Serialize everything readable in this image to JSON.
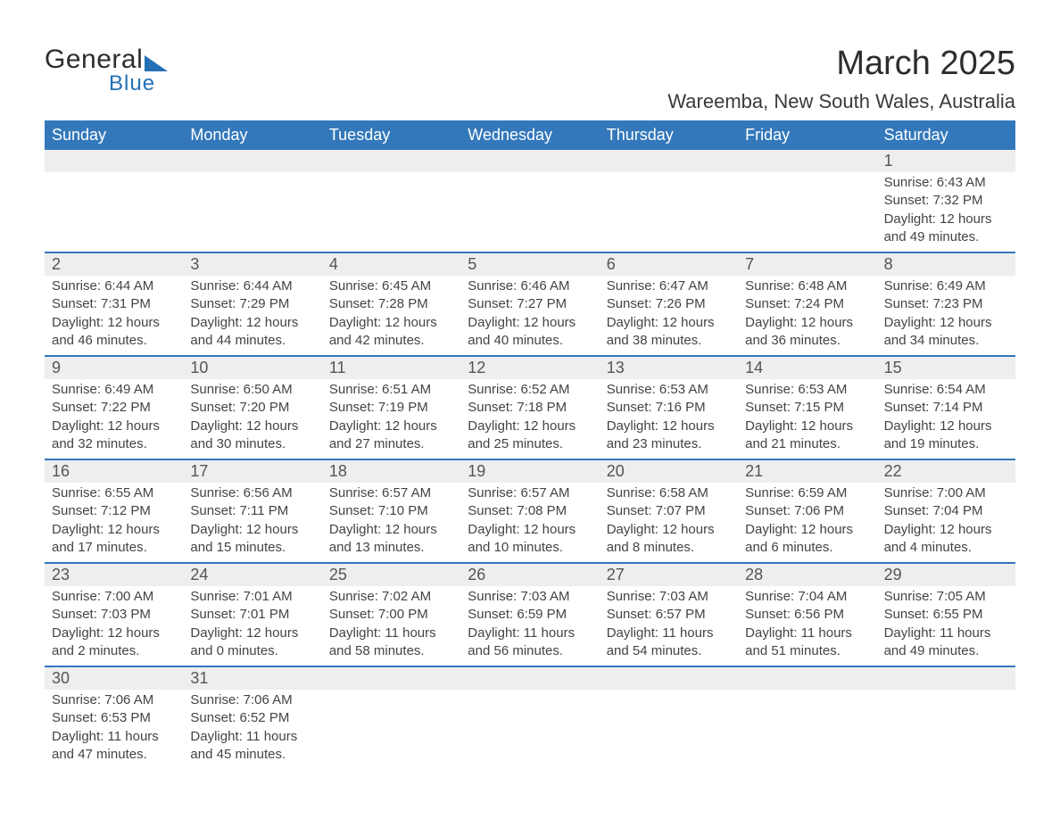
{
  "brand": {
    "name1": "General",
    "name2": "Blue"
  },
  "title": "March 2025",
  "location": "Wareemba, New South Wales, Australia",
  "colors": {
    "header_bg": "#3378bb",
    "header_text": "#ffffff",
    "daynum_bg": "#eeeeee",
    "body_text": "#444444",
    "rule": "#3378bb",
    "logo_accent": "#2470b5"
  },
  "daysOfWeek": [
    "Sunday",
    "Monday",
    "Tuesday",
    "Wednesday",
    "Thursday",
    "Friday",
    "Saturday"
  ],
  "labels": {
    "sunrise": "Sunrise:",
    "sunset": "Sunset:",
    "daylight": "Daylight:"
  },
  "weeks": [
    [
      null,
      null,
      null,
      null,
      null,
      null,
      {
        "d": "1",
        "sr": "6:43 AM",
        "ss": "7:32 PM",
        "dl": "12 hours and 49 minutes."
      }
    ],
    [
      {
        "d": "2",
        "sr": "6:44 AM",
        "ss": "7:31 PM",
        "dl": "12 hours and 46 minutes."
      },
      {
        "d": "3",
        "sr": "6:44 AM",
        "ss": "7:29 PM",
        "dl": "12 hours and 44 minutes."
      },
      {
        "d": "4",
        "sr": "6:45 AM",
        "ss": "7:28 PM",
        "dl": "12 hours and 42 minutes."
      },
      {
        "d": "5",
        "sr": "6:46 AM",
        "ss": "7:27 PM",
        "dl": "12 hours and 40 minutes."
      },
      {
        "d": "6",
        "sr": "6:47 AM",
        "ss": "7:26 PM",
        "dl": "12 hours and 38 minutes."
      },
      {
        "d": "7",
        "sr": "6:48 AM",
        "ss": "7:24 PM",
        "dl": "12 hours and 36 minutes."
      },
      {
        "d": "8",
        "sr": "6:49 AM",
        "ss": "7:23 PM",
        "dl": "12 hours and 34 minutes."
      }
    ],
    [
      {
        "d": "9",
        "sr": "6:49 AM",
        "ss": "7:22 PM",
        "dl": "12 hours and 32 minutes."
      },
      {
        "d": "10",
        "sr": "6:50 AM",
        "ss": "7:20 PM",
        "dl": "12 hours and 30 minutes."
      },
      {
        "d": "11",
        "sr": "6:51 AM",
        "ss": "7:19 PM",
        "dl": "12 hours and 27 minutes."
      },
      {
        "d": "12",
        "sr": "6:52 AM",
        "ss": "7:18 PM",
        "dl": "12 hours and 25 minutes."
      },
      {
        "d": "13",
        "sr": "6:53 AM",
        "ss": "7:16 PM",
        "dl": "12 hours and 23 minutes."
      },
      {
        "d": "14",
        "sr": "6:53 AM",
        "ss": "7:15 PM",
        "dl": "12 hours and 21 minutes."
      },
      {
        "d": "15",
        "sr": "6:54 AM",
        "ss": "7:14 PM",
        "dl": "12 hours and 19 minutes."
      }
    ],
    [
      {
        "d": "16",
        "sr": "6:55 AM",
        "ss": "7:12 PM",
        "dl": "12 hours and 17 minutes."
      },
      {
        "d": "17",
        "sr": "6:56 AM",
        "ss": "7:11 PM",
        "dl": "12 hours and 15 minutes."
      },
      {
        "d": "18",
        "sr": "6:57 AM",
        "ss": "7:10 PM",
        "dl": "12 hours and 13 minutes."
      },
      {
        "d": "19",
        "sr": "6:57 AM",
        "ss": "7:08 PM",
        "dl": "12 hours and 10 minutes."
      },
      {
        "d": "20",
        "sr": "6:58 AM",
        "ss": "7:07 PM",
        "dl": "12 hours and 8 minutes."
      },
      {
        "d": "21",
        "sr": "6:59 AM",
        "ss": "7:06 PM",
        "dl": "12 hours and 6 minutes."
      },
      {
        "d": "22",
        "sr": "7:00 AM",
        "ss": "7:04 PM",
        "dl": "12 hours and 4 minutes."
      }
    ],
    [
      {
        "d": "23",
        "sr": "7:00 AM",
        "ss": "7:03 PM",
        "dl": "12 hours and 2 minutes."
      },
      {
        "d": "24",
        "sr": "7:01 AM",
        "ss": "7:01 PM",
        "dl": "12 hours and 0 minutes."
      },
      {
        "d": "25",
        "sr": "7:02 AM",
        "ss": "7:00 PM",
        "dl": "11 hours and 58 minutes."
      },
      {
        "d": "26",
        "sr": "7:03 AM",
        "ss": "6:59 PM",
        "dl": "11 hours and 56 minutes."
      },
      {
        "d": "27",
        "sr": "7:03 AM",
        "ss": "6:57 PM",
        "dl": "11 hours and 54 minutes."
      },
      {
        "d": "28",
        "sr": "7:04 AM",
        "ss": "6:56 PM",
        "dl": "11 hours and 51 minutes."
      },
      {
        "d": "29",
        "sr": "7:05 AM",
        "ss": "6:55 PM",
        "dl": "11 hours and 49 minutes."
      }
    ],
    [
      {
        "d": "30",
        "sr": "7:06 AM",
        "ss": "6:53 PM",
        "dl": "11 hours and 47 minutes."
      },
      {
        "d": "31",
        "sr": "7:06 AM",
        "ss": "6:52 PM",
        "dl": "11 hours and 45 minutes."
      },
      null,
      null,
      null,
      null,
      null
    ]
  ]
}
